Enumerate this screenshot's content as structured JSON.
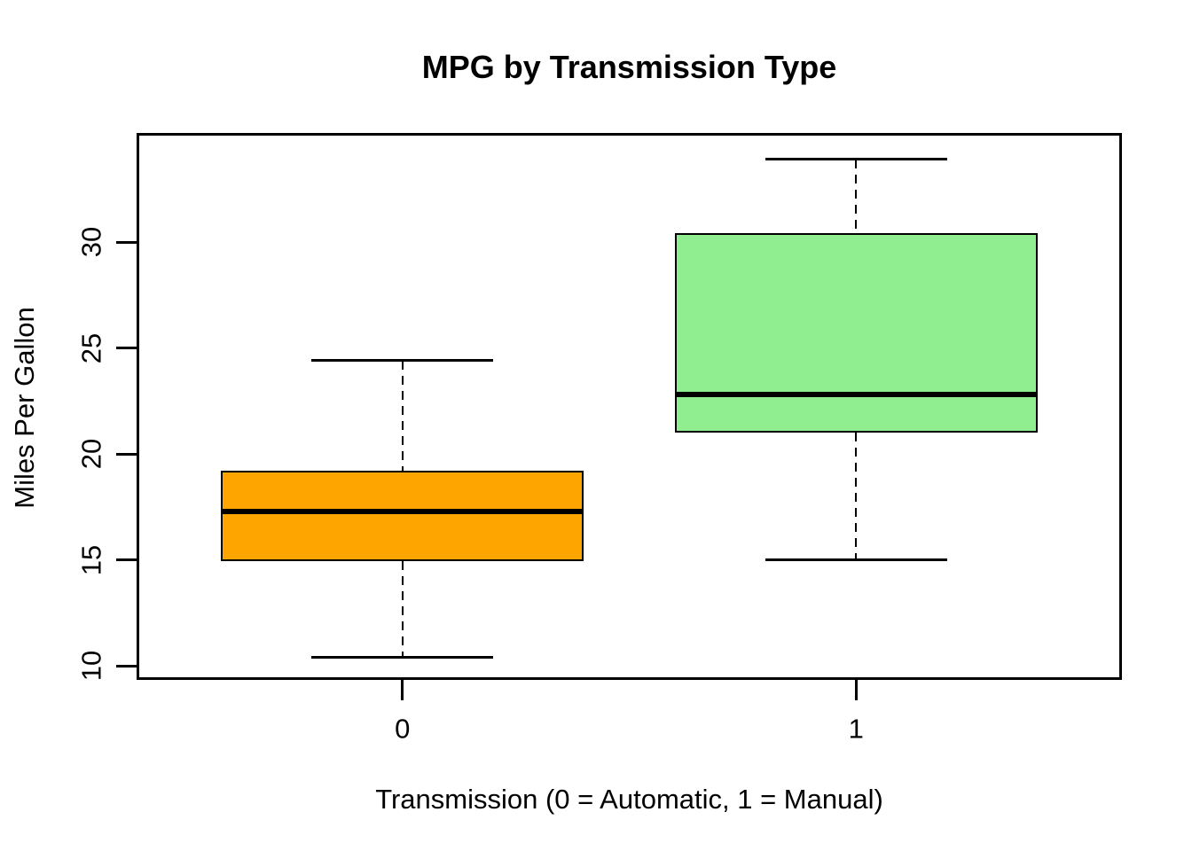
{
  "page": {
    "background_color": "#FFFFFF",
    "text_color": "#000000"
  },
  "chart_data": {
    "type": "boxplot",
    "title": "MPG by Transmission Type",
    "xlabel": "Transmission (0 = Automatic, 1 = Manual)",
    "ylabel": "Miles Per Gallon",
    "categories": [
      "0",
      "1"
    ],
    "y_ticks": [
      10,
      15,
      20,
      25,
      30
    ],
    "ylim": [
      9.46,
      35.02
    ],
    "xlim": [
      0.42,
      2.58
    ],
    "grid": false,
    "legend": false,
    "line_color": "#000000",
    "series": [
      {
        "name": "0",
        "transmission": "Automatic",
        "fill_color": "#FFA500",
        "lower_whisker": 10.4,
        "q1": 14.95,
        "median": 17.3,
        "q3": 19.2,
        "upper_whisker": 24.4,
        "outliers": []
      },
      {
        "name": "1",
        "transmission": "Manual",
        "fill_color": "#90EE90",
        "lower_whisker": 15.0,
        "q1": 21.0,
        "median": 22.8,
        "q3": 30.4,
        "upper_whisker": 33.9,
        "outliers": []
      }
    ]
  }
}
